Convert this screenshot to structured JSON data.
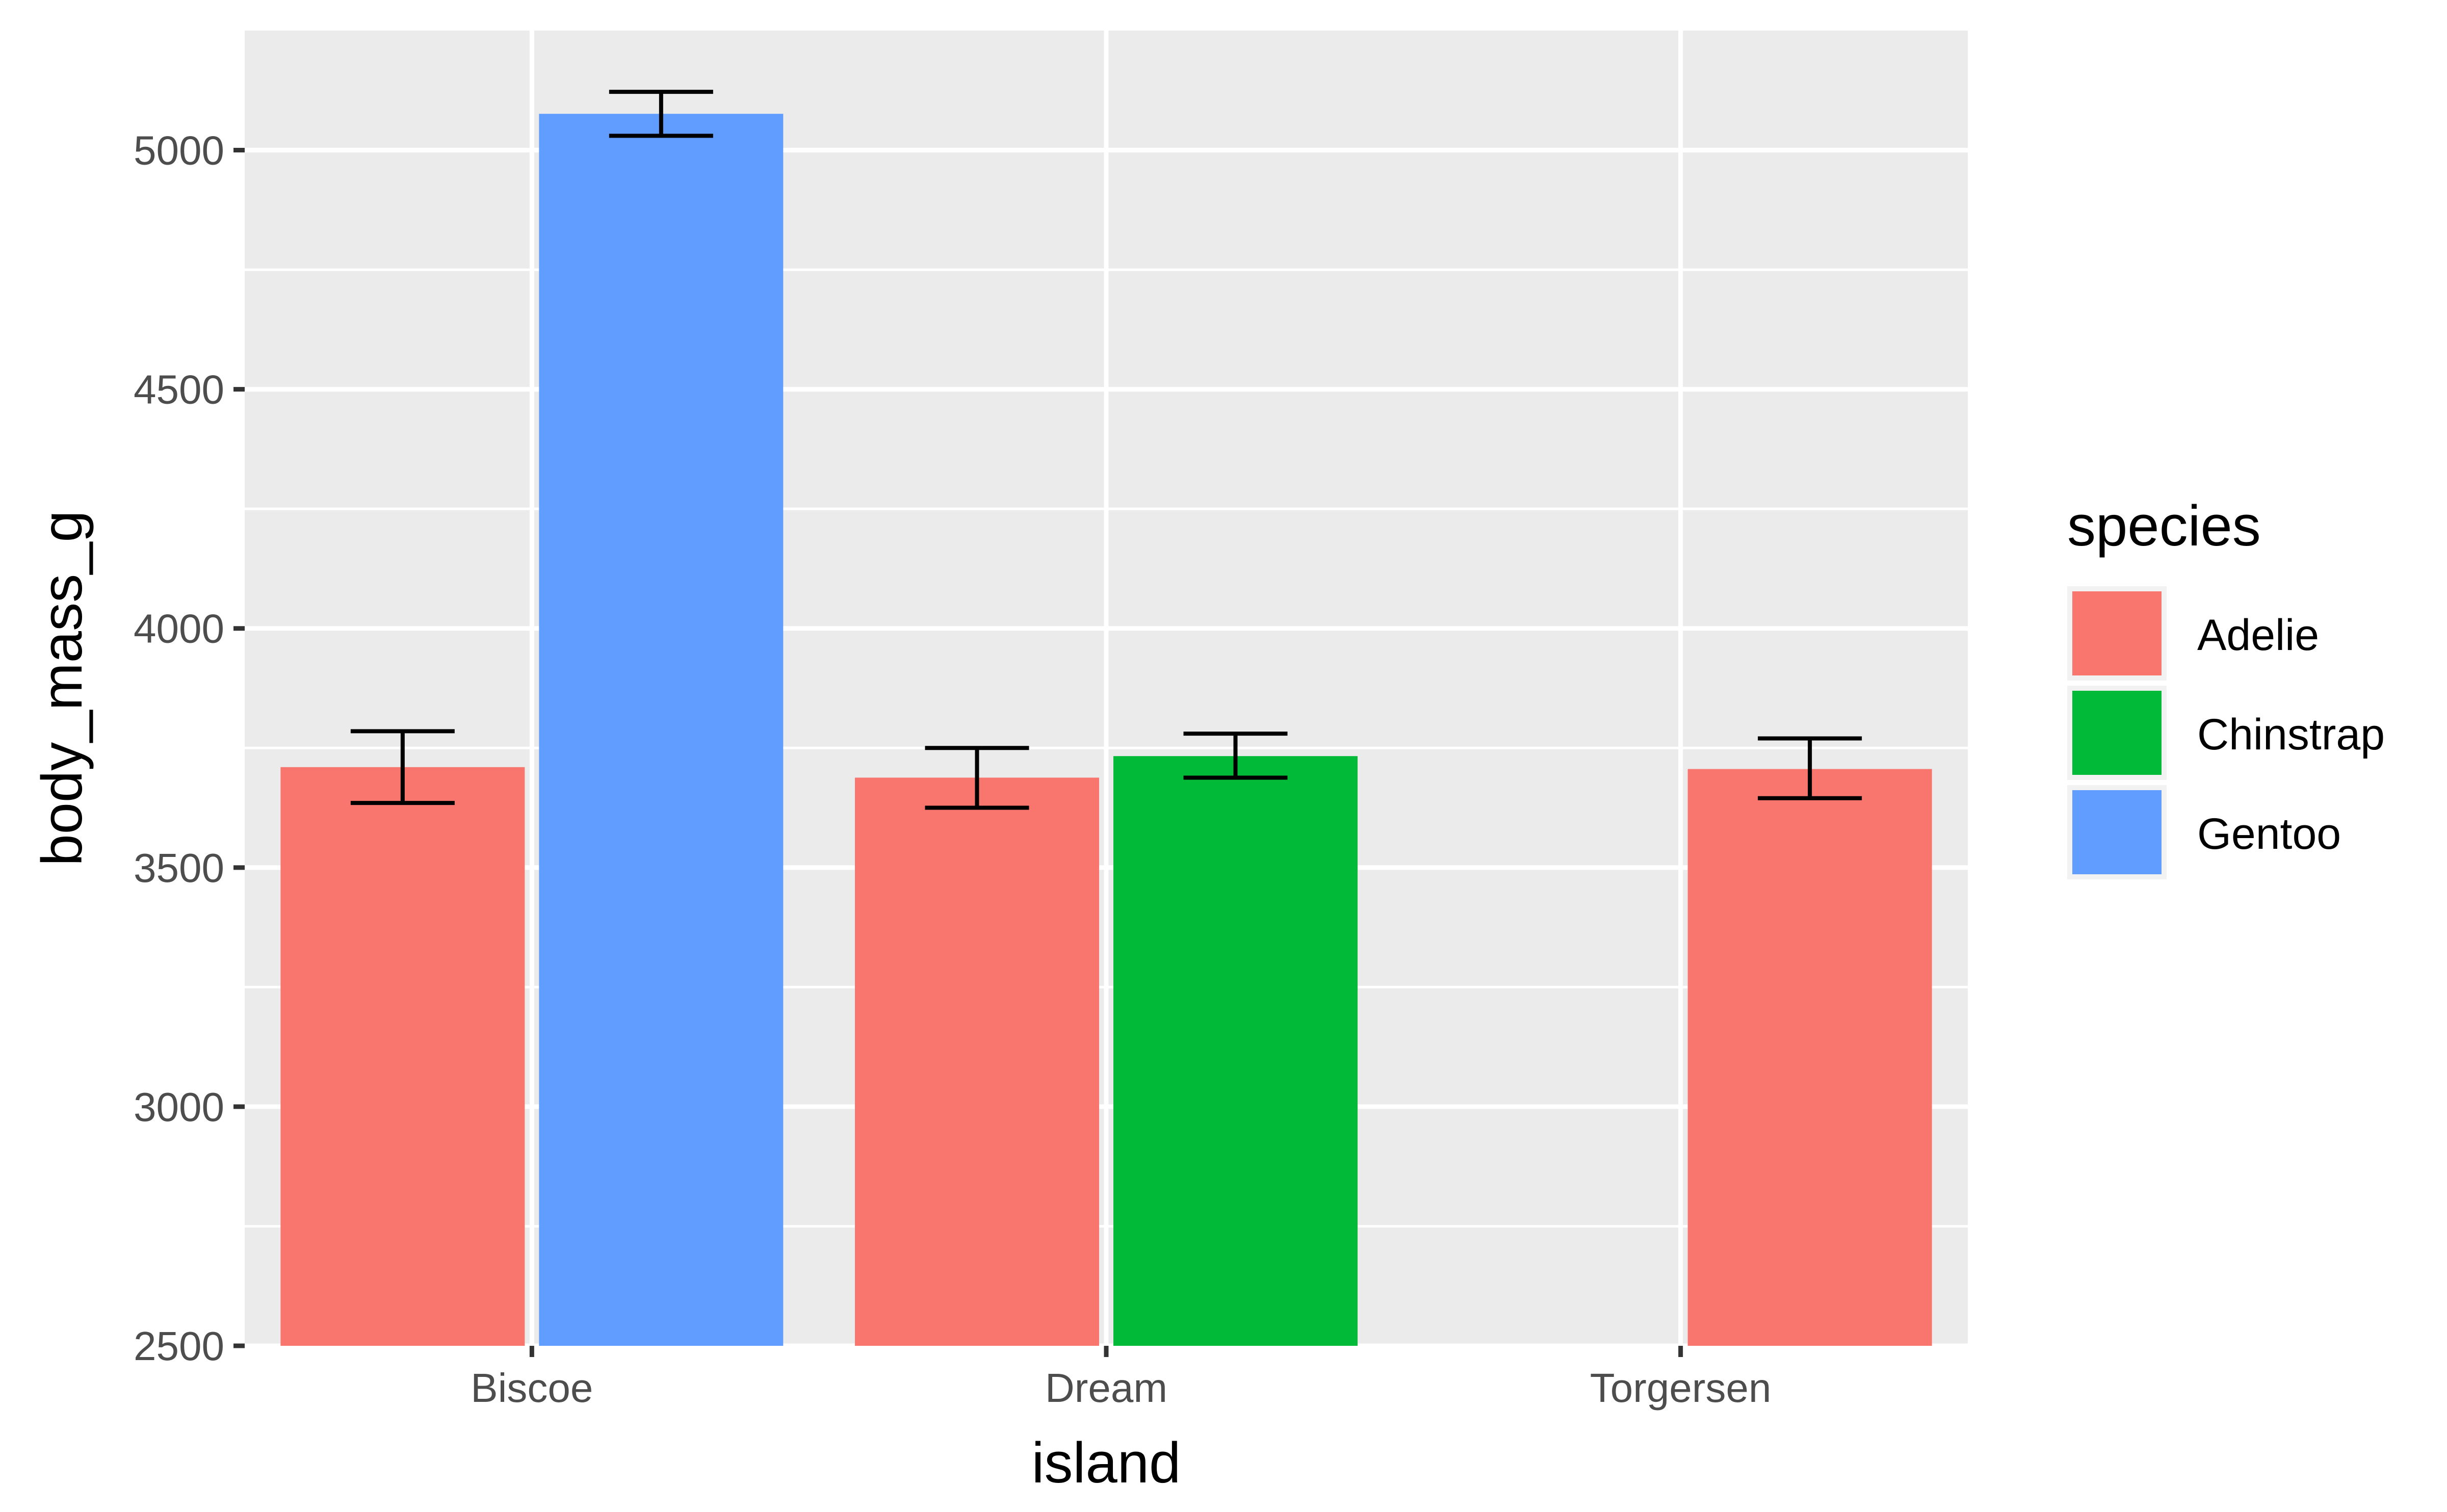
{
  "chart_data": {
    "type": "bar",
    "xlabel": "island",
    "ylabel": "body_mass_g",
    "categories": [
      "Biscoe",
      "Dream",
      "Torgersen"
    ],
    "ylim": [
      2500,
      5250
    ],
    "yticks": [
      2500,
      3000,
      3500,
      4000,
      4500,
      5000
    ],
    "ytick_labels": [
      "2500",
      "3000",
      "3500",
      "4000",
      "4500",
      "5000"
    ],
    "grid": true,
    "background": "#ebebeb",
    "legend": {
      "title": "species",
      "position": "right",
      "items": [
        {
          "label": "Adelie",
          "color": "#F8766D"
        },
        {
          "label": "Chinstrap",
          "color": "#00BA38"
        },
        {
          "label": "Gentoo",
          "color": "#619CFF"
        }
      ]
    },
    "bars": [
      {
        "category": "Biscoe",
        "species": "Adelie",
        "value": 3710,
        "err_low": 3635,
        "err_high": 3785,
        "slot": 0,
        "slots": 2
      },
      {
        "category": "Biscoe",
        "species": "Gentoo",
        "value": 5076,
        "err_low": 5030,
        "err_high": 5122,
        "slot": 1,
        "slots": 2
      },
      {
        "category": "Dream",
        "species": "Adelie",
        "value": 3688,
        "err_low": 3625,
        "err_high": 3750,
        "slot": 0,
        "slots": 2
      },
      {
        "category": "Dream",
        "species": "Chinstrap",
        "value": 3733,
        "err_low": 3688,
        "err_high": 3780,
        "slot": 1,
        "slots": 2
      },
      {
        "category": "Torgersen",
        "species": "Adelie",
        "value": 3706,
        "err_low": 3645,
        "err_high": 3770,
        "slot": 1,
        "slots": 2
      }
    ]
  }
}
